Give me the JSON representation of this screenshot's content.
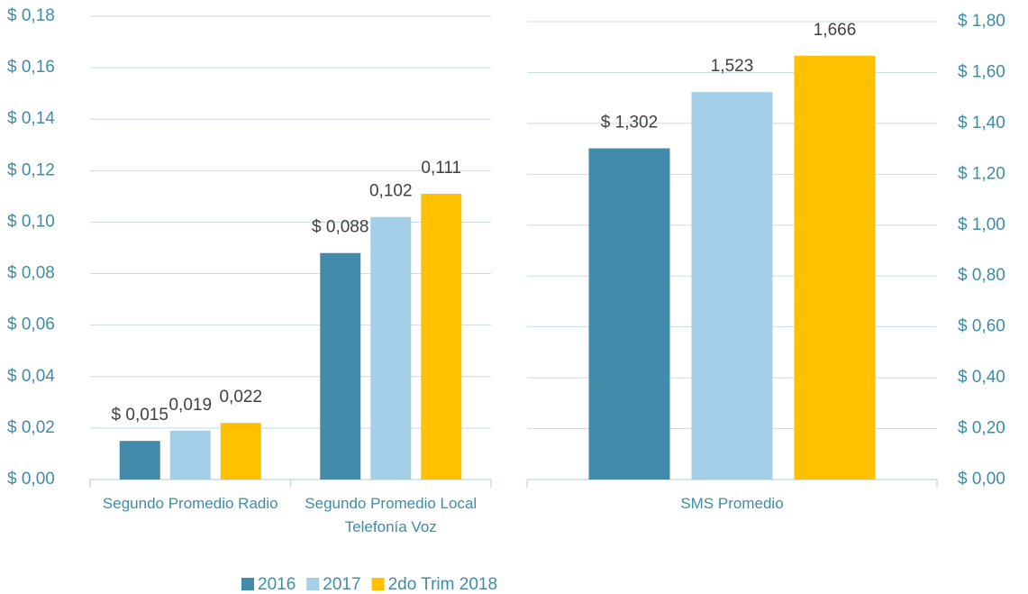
{
  "chart_data": [
    {
      "type": "bar",
      "categories": [
        "Segundo  Promedio Radio",
        "Segundo  Promedio Local Telefonía Voz"
      ],
      "series": [
        {
          "name": "2016",
          "color": "#428bab",
          "values": [
            0.015,
            0.088
          ],
          "value_labels": [
            "$ 0,015",
            "$ 0,088"
          ]
        },
        {
          "name": "2017",
          "color": "#a5cfe8",
          "values": [
            0.019,
            0.102
          ],
          "value_labels": [
            "0,019",
            "0,102"
          ]
        },
        {
          "name": "2do Trim 2018",
          "color": "#ffc000",
          "values": [
            0.022,
            0.111
          ],
          "value_labels": [
            "0,022",
            "0,111"
          ]
        }
      ],
      "ylim": [
        0,
        0.18
      ],
      "yticks": [
        {
          "value": 0,
          "label": "$ 0,00"
        },
        {
          "value": 0.02,
          "label": "$ 0,02"
        },
        {
          "value": 0.04,
          "label": "$ 0,04"
        },
        {
          "value": 0.06,
          "label": "$ 0,06"
        },
        {
          "value": 0.08,
          "label": "$ 0,08"
        },
        {
          "value": 0.1,
          "label": "$ 0,10"
        },
        {
          "value": 0.12,
          "label": "$ 0,12"
        },
        {
          "value": 0.14,
          "label": "$ 0,14"
        },
        {
          "value": 0.16,
          "label": "$ 0,16"
        },
        {
          "value": 0.18,
          "label": "$ 0,18"
        }
      ],
      "grid": true,
      "y_axis_side": "left",
      "legend": "bottom"
    },
    {
      "type": "bar",
      "categories": [
        "SMS Promedio"
      ],
      "series": [
        {
          "color": "#428bab",
          "values": [
            1.302
          ],
          "value_labels": [
            "$ 1,302"
          ]
        },
        {
          "color": "#a5cfe8",
          "values": [
            1.523
          ],
          "value_labels": [
            "1,523"
          ]
        },
        {
          "color": "#ffc000",
          "values": [
            1.666
          ],
          "value_labels": [
            "1,666"
          ]
        }
      ],
      "ylim": [
        0,
        1.8
      ],
      "yticks": [
        {
          "value": 0,
          "label": "$ 0,00"
        },
        {
          "value": 0.2,
          "label": "$ 0,20"
        },
        {
          "value": 0.4,
          "label": "$ 0,40"
        },
        {
          "value": 0.6,
          "label": "$ 0,60"
        },
        {
          "value": 0.8,
          "label": "$ 0,80"
        },
        {
          "value": 1,
          "label": "$ 1,00"
        },
        {
          "value": 1.2,
          "label": "$ 1,20"
        },
        {
          "value": 1.4,
          "label": "$ 1,40"
        },
        {
          "value": 1.6,
          "label": "$ 1,60"
        },
        {
          "value": 1.8,
          "label": "$ 1,80"
        }
      ],
      "grid": true,
      "y_axis_side": "right"
    }
  ]
}
